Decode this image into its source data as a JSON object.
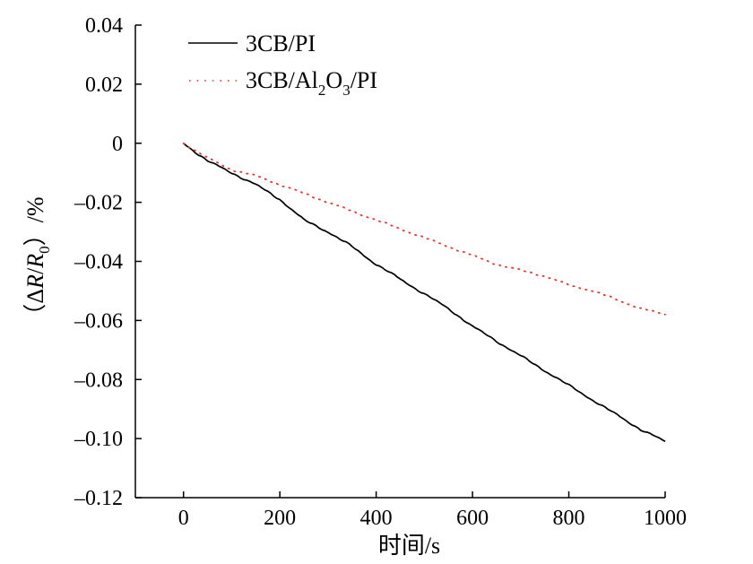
{
  "chart_data": {
    "type": "line",
    "title": "",
    "xlabel": "时间/s",
    "ylabel_parts": {
      "open_paren": "（",
      "delta": "Δ",
      "r": "R",
      "slash": "/",
      "r0_base": "R",
      "r0_sub": "0",
      "close_paren": "）",
      "unit": "/%"
    },
    "xlim": [
      -100,
      1000
    ],
    "ylim": [
      -0.12,
      0.04
    ],
    "x_ticks": [
      0,
      200,
      400,
      600,
      800,
      1000
    ],
    "x_tick_labels": [
      "0",
      "200",
      "400",
      "600",
      "800",
      "1000"
    ],
    "y_ticks": [
      0.04,
      0.02,
      0,
      -0.02,
      -0.04,
      -0.06,
      -0.08,
      -0.1,
      -0.12
    ],
    "y_tick_labels": [
      "0.04",
      "0.02",
      "0",
      "–0.02",
      "–0.04",
      "–0.06",
      "–0.08",
      "–0.10",
      "–0.12"
    ],
    "legend_position": "top-left",
    "series": [
      {
        "name": "3CB/PI",
        "legend": {
          "text": "3CB/PI"
        },
        "style": "solid",
        "color": "#000000",
        "x": [
          0,
          50,
          100,
          150,
          200,
          250,
          300,
          350,
          400,
          450,
          500,
          550,
          600,
          650,
          700,
          750,
          800,
          850,
          900,
          950,
          1000
        ],
        "y": [
          0,
          -0.006,
          -0.01,
          -0.014,
          -0.019,
          -0.026,
          -0.03,
          -0.035,
          -0.041,
          -0.046,
          -0.051,
          -0.056,
          -0.062,
          -0.067,
          -0.072,
          -0.077,
          -0.082,
          -0.087,
          -0.092,
          -0.097,
          -0.101
        ]
      },
      {
        "name": "3CB/Al2O3/PI",
        "legend": {
          "part1": "3CB/Al",
          "sub1": "2",
          "part2": "O",
          "sub2": "3",
          "part3": "/PI"
        },
        "style": "dotted",
        "color": "#e8332a",
        "x": [
          0,
          50,
          100,
          150,
          200,
          250,
          300,
          350,
          400,
          450,
          500,
          550,
          600,
          650,
          700,
          750,
          800,
          850,
          900,
          950,
          1000
        ],
        "y": [
          0,
          -0.005,
          -0.009,
          -0.011,
          -0.014,
          -0.017,
          -0.02,
          -0.023,
          -0.026,
          -0.029,
          -0.032,
          -0.035,
          -0.038,
          -0.041,
          -0.043,
          -0.045,
          -0.048,
          -0.05,
          -0.053,
          -0.056,
          -0.058
        ]
      }
    ]
  }
}
